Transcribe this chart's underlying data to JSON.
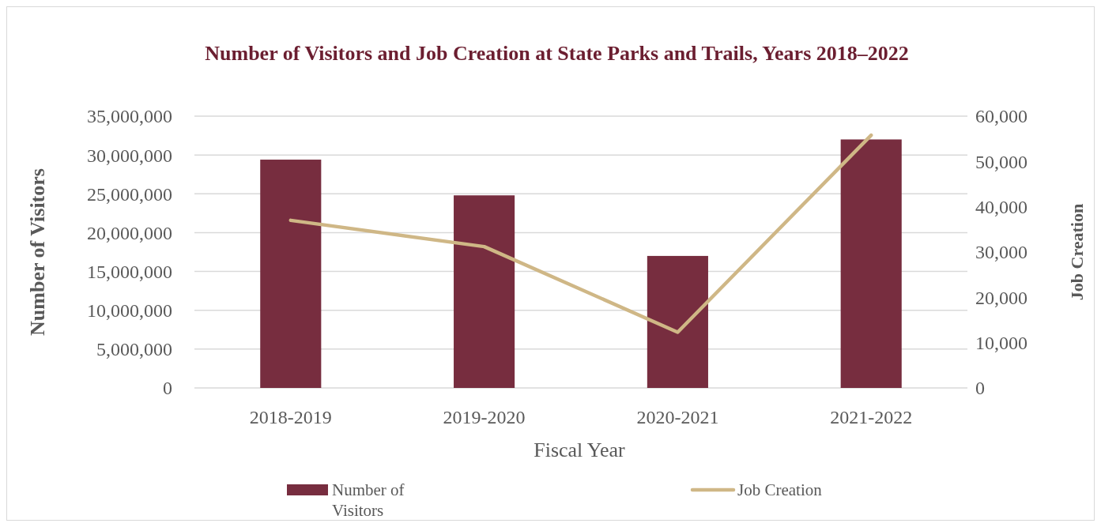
{
  "chart_data": {
    "type": "bar",
    "title": "Number of Visitors and Job Creation at State Parks and Trails, Years 2018–2022",
    "xlabel": "Fiscal Year",
    "ylabel": "Number of Visitors",
    "y2label": "Job Creation",
    "categories": [
      "2018-2019",
      "2019-2020",
      "2020-2021",
      "2021-2022"
    ],
    "series": [
      {
        "name": "Number of Visitors",
        "color": "#772d3f",
        "values": [
          29400000,
          24800000,
          17000000,
          32000000
        ]
      },
      {
        "name": "Job Creation",
        "type": "line",
        "axis": "y2",
        "color": "#cfb786",
        "values": [
          37000,
          31200,
          12300,
          55800
        ]
      }
    ],
    "ylim": [
      0,
      35000000
    ],
    "yticks": [
      {
        "value": 0,
        "label": "0"
      },
      {
        "value": 5000000,
        "label": "5,000,000"
      },
      {
        "value": 10000000,
        "label": "10,000,000"
      },
      {
        "value": 15000000,
        "label": "15,000,000"
      },
      {
        "value": 20000000,
        "label": "20,000,000"
      },
      {
        "value": 25000000,
        "label": "25,000,000"
      },
      {
        "value": 30000000,
        "label": "30,000,000"
      },
      {
        "value": 35000000,
        "label": "35,000,000"
      }
    ],
    "y2lim": [
      0,
      60000
    ],
    "y2ticks": [
      {
        "value": 0,
        "label": "0"
      },
      {
        "value": 10000,
        "label": "10,000"
      },
      {
        "value": 20000,
        "label": "20,000"
      },
      {
        "value": 30000,
        "label": "30,000"
      },
      {
        "value": 40000,
        "label": "40,000"
      },
      {
        "value": 50000,
        "label": "50,000"
      },
      {
        "value": 60000,
        "label": "60,000"
      }
    ],
    "grid": "y",
    "legend": "bottom"
  }
}
